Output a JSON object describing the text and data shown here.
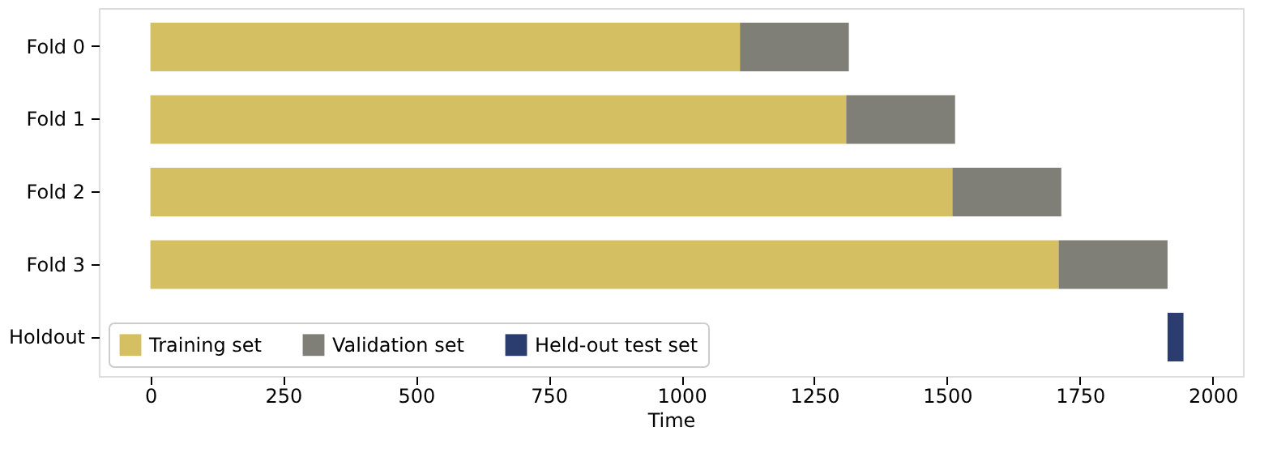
{
  "chart_data": {
    "type": "bar",
    "orientation": "horizontal",
    "xlabel": "Time",
    "categories": [
      "Fold 0",
      "Fold 1",
      "Fold 2",
      "Fold 3",
      "Holdout"
    ],
    "series": [
      {
        "name": "Training set",
        "color": "#d4c062",
        "base": [
          0,
          0,
          0,
          0,
          null
        ],
        "values": [
          1110,
          1310,
          1510,
          1710,
          null
        ]
      },
      {
        "name": "Validation set",
        "color": "#7f7e77",
        "base": [
          1110,
          1310,
          1510,
          1710,
          null
        ],
        "values": [
          205,
          205,
          205,
          205,
          null
        ]
      },
      {
        "name": "Held-out test set",
        "color": "#2b3d6e",
        "base": [
          null,
          null,
          null,
          null,
          1915
        ],
        "values": [
          null,
          null,
          null,
          null,
          30
        ]
      }
    ],
    "xlim": [
      -97,
      2057
    ],
    "xticks": [
      0,
      250,
      500,
      750,
      1000,
      1250,
      1500,
      1750,
      2000
    ],
    "grid": false,
    "legend": "bottom left"
  }
}
